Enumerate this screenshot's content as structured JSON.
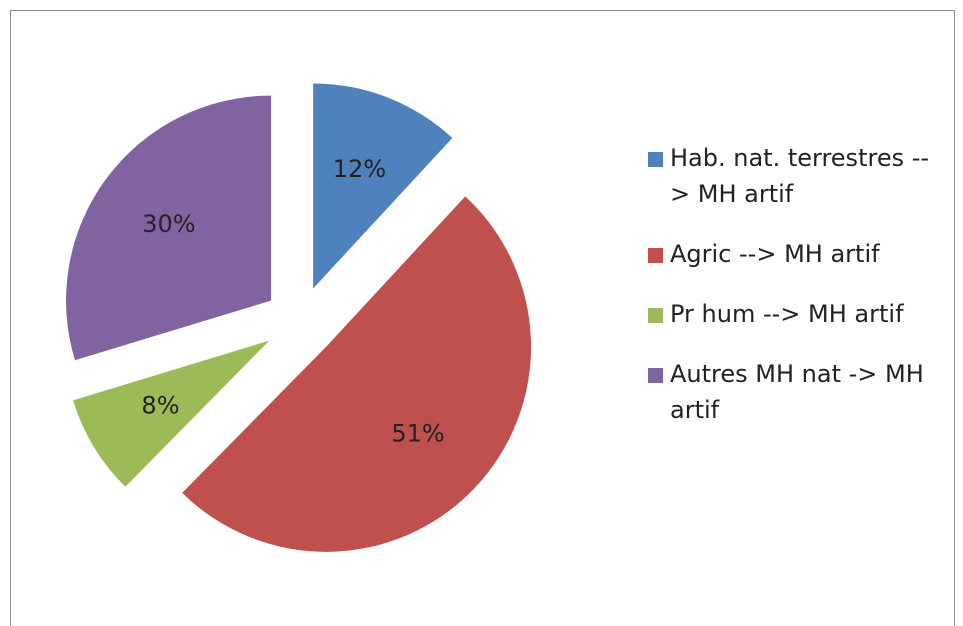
{
  "chart_data": {
    "type": "pie",
    "categories": [
      "Hab. nat. terrestres --> MH artif",
      "Agric --> MH artif",
      "Pr hum --> MH artif",
      "Autres MH nat -> MH artif"
    ],
    "values": [
      12,
      51,
      8,
      30
    ],
    "value_labels": [
      "12%",
      "51%",
      "8%",
      "30%"
    ],
    "colors": [
      "#4f81bd",
      "#c0504d",
      "#9bbb59",
      "#8064a2"
    ],
    "legend": "right"
  }
}
